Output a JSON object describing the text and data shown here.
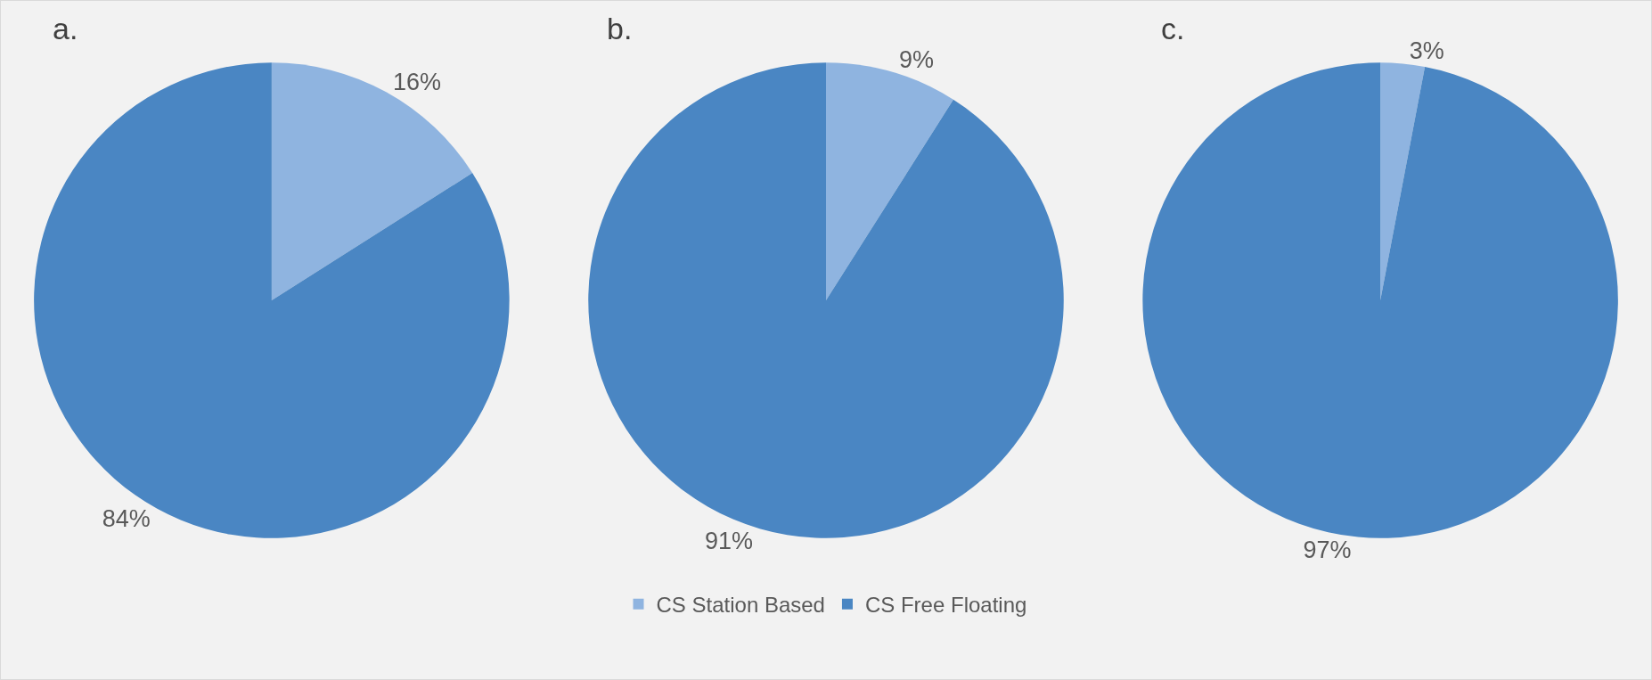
{
  "chart_data": [
    {
      "type": "pie",
      "title": "a.",
      "categories": [
        "CS Station Based",
        "CS Free Floating"
      ],
      "values": [
        16,
        84
      ],
      "colors": [
        "#8fb4e0",
        "#4a86c3"
      ],
      "value_labels": [
        "16%",
        "84%"
      ],
      "legend": "bottom"
    },
    {
      "type": "pie",
      "title": "b.",
      "categories": [
        null,
        null
      ],
      "values": [
        9,
        91
      ],
      "colors": [
        "#8fb4e0",
        "#4a86c3"
      ],
      "value_labels": [
        "9%",
        "91%"
      ]
    },
    {
      "type": "pie",
      "title": "c.",
      "categories": [
        null,
        null
      ],
      "values": [
        3,
        97
      ],
      "colors": [
        "#8fb4e0",
        "#4a86c3"
      ],
      "value_labels": [
        "3%",
        "97%"
      ]
    }
  ]
}
